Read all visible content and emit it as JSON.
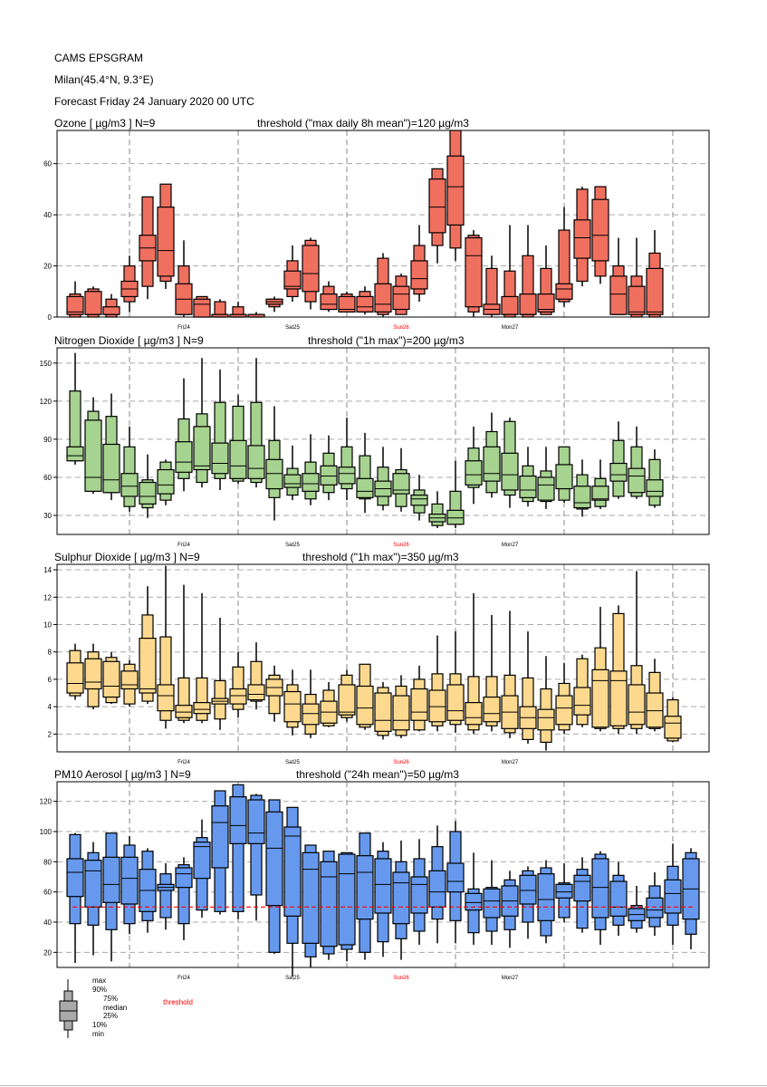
{
  "header": {
    "title": "CAMS EPSGRAM",
    "location": "Milan(45.4°N, 9.3°E)",
    "forecast": "Forecast Friday 24 January 2020 00 UTC"
  },
  "day_labels": [
    {
      "label": "Fri24",
      "color": "#000000"
    },
    {
      "label": "Sat25",
      "color": "#000000"
    },
    {
      "label": "Sun26",
      "color": "#ff0000"
    },
    {
      "label": "Mon27",
      "color": "#000000"
    }
  ],
  "legend": {
    "max": "max",
    "p90": "90%",
    "p75": "75%",
    "median": "median",
    "p25": "25%",
    "p10": "10%",
    "min": "min",
    "threshold": "threshold",
    "threshold_color": "#ff0000"
  },
  "chart_data": [
    {
      "type": "boxplot",
      "name": "ozone",
      "title": "Ozone [ µg/m3 ]   N=9",
      "threshold_label": "threshold (\"max daily 8h mean\")=120 µg/m3",
      "fill": "#f07060",
      "ylim": [
        0,
        73
      ],
      "yticks": [
        0,
        20,
        40,
        60
      ],
      "threshold_line": null,
      "boxes": [
        [
          0,
          0,
          1,
          2,
          8,
          9,
          14
        ],
        [
          0,
          0,
          1,
          1,
          10,
          11,
          12
        ],
        [
          0,
          0,
          1,
          1,
          4,
          7,
          9
        ],
        [
          2,
          6,
          8,
          11,
          14,
          20,
          24
        ],
        [
          7,
          12,
          22,
          27,
          32,
          47,
          40
        ],
        [
          11,
          14,
          16,
          26,
          43,
          52,
          42
        ],
        [
          0,
          1,
          1,
          7,
          13,
          20,
          30
        ],
        [
          0,
          0,
          0,
          5,
          7,
          8,
          8
        ],
        [
          0,
          0,
          0,
          0,
          1,
          6,
          7
        ],
        [
          0,
          0,
          0,
          0,
          1,
          4,
          6
        ],
        [
          0,
          0,
          0,
          0,
          1,
          1,
          2
        ],
        [
          2,
          4,
          5,
          6,
          7,
          7,
          8
        ],
        [
          6,
          8,
          11,
          12,
          18,
          22,
          28
        ],
        [
          3,
          6,
          10,
          17,
          28,
          30,
          31
        ],
        [
          2,
          3,
          3,
          5,
          9,
          12,
          14
        ],
        [
          2,
          2,
          2,
          3,
          8,
          9,
          10
        ],
        [
          1,
          2,
          2,
          4,
          8,
          10,
          12
        ],
        [
          0,
          1,
          2,
          5,
          13,
          23,
          25
        ],
        [
          1,
          1,
          3,
          9,
          12,
          16,
          17
        ],
        [
          6,
          9,
          11,
          15,
          22,
          28,
          36
        ],
        [
          21,
          28,
          33,
          43,
          54,
          58,
          57
        ],
        [
          22,
          27,
          36,
          51,
          63,
          73,
          73
        ],
        [
          0,
          2,
          4,
          24,
          31,
          32,
          34
        ],
        [
          0,
          1,
          1,
          3,
          5,
          19,
          24
        ],
        [
          0,
          0,
          1,
          1,
          8,
          18,
          36
        ],
        [
          0,
          0,
          1,
          1,
          9,
          24,
          36
        ],
        [
          1,
          1,
          2,
          3,
          9,
          19,
          28
        ],
        [
          4,
          6,
          7,
          11,
          13,
          34,
          43
        ],
        [
          12,
          14,
          23,
          31,
          38,
          50,
          51
        ],
        [
          13,
          16,
          22,
          32,
          46,
          51,
          51
        ],
        [
          1,
          1,
          1,
          9,
          16,
          20,
          31
        ],
        [
          0,
          0,
          1,
          2,
          12,
          16,
          31
        ],
        [
          0,
          0,
          1,
          2,
          19,
          25,
          34
        ]
      ]
    },
    {
      "type": "boxplot",
      "name": "nitrogen-dioxide",
      "title": "Nitrogen Dioxide [ µg/m3 ]   N=9",
      "threshold_label": "threshold (\"1h max\")=200 µg/m3",
      "fill": "#a6d38f",
      "ylim": [
        15,
        162
      ],
      "yticks": [
        30,
        60,
        90,
        120,
        150
      ],
      "threshold_line": null,
      "boxes": [
        [
          70,
          73,
          73,
          77,
          84,
          128,
          158
        ],
        [
          47,
          49,
          49,
          60,
          105,
          112,
          123
        ],
        [
          42,
          48,
          48,
          58,
          86,
          108,
          126
        ],
        [
          33,
          37,
          45,
          53,
          63,
          84,
          100
        ],
        [
          28,
          36,
          39,
          45,
          56,
          58,
          78
        ],
        [
          38,
          42,
          47,
          54,
          66,
          72,
          74
        ],
        [
          49,
          59,
          64,
          72,
          88,
          106,
          138
        ],
        [
          52,
          56,
          66,
          69,
          100,
          110,
          154
        ],
        [
          50,
          59,
          63,
          71,
          87,
          119,
          145
        ],
        [
          55,
          57,
          59,
          69,
          89,
          116,
          125
        ],
        [
          52,
          56,
          59,
          67,
          85,
          119,
          154
        ],
        [
          26,
          44,
          51,
          63,
          74,
          89,
          116
        ],
        [
          42,
          46,
          52,
          55,
          62,
          67,
          85
        ],
        [
          38,
          43,
          49,
          55,
          63,
          72,
          94
        ],
        [
          42,
          48,
          54,
          61,
          69,
          79,
          93
        ],
        [
          42,
          51,
          55,
          63,
          68,
          84,
          107
        ],
        [
          32,
          43,
          44,
          49,
          59,
          77,
          95
        ],
        [
          34,
          38,
          45,
          51,
          57,
          68,
          84
        ],
        [
          33,
          37,
          47,
          50,
          63,
          66,
          83
        ],
        [
          26,
          32,
          38,
          43,
          46,
          50,
          62
        ],
        [
          20,
          22,
          25,
          28,
          31,
          39,
          49
        ],
        [
          20,
          23,
          23,
          28,
          34,
          49,
          73
        ],
        [
          39,
          52,
          54,
          62,
          73,
          83,
          100
        ],
        [
          44,
          48,
          57,
          63,
          84,
          96,
          111
        ],
        [
          36,
          46,
          50,
          62,
          79,
          104,
          107
        ],
        [
          37,
          41,
          44,
          50,
          61,
          69,
          84
        ],
        [
          35,
          41,
          42,
          54,
          60,
          65,
          84
        ],
        [
          40,
          42,
          51,
          51,
          70,
          84,
          84
        ],
        [
          29,
          35,
          36,
          40,
          53,
          62,
          74
        ],
        [
          35,
          37,
          42,
          43,
          53,
          59,
          74
        ],
        [
          43,
          45,
          57,
          62,
          71,
          89,
          104
        ],
        [
          43,
          45,
          48,
          61,
          67,
          84,
          100
        ],
        [
          36,
          38,
          45,
          49,
          58,
          74,
          82
        ]
      ]
    },
    {
      "type": "boxplot",
      "name": "sulphur-dioxide",
      "title": "Sulphur Dioxide [ µg/m3 ]   N=9",
      "threshold_label": "threshold (\"1h max\")=350 µg/m3",
      "fill": "#fcd98e",
      "ylim": [
        0.7,
        14.4
      ],
      "yticks": [
        2,
        4,
        6,
        8,
        10,
        12,
        14
      ],
      "threshold_line": null,
      "boxes": [
        [
          4.5,
          4.8,
          5.0,
          5.7,
          7.2,
          8.1,
          8.6
        ],
        [
          3.8,
          4.0,
          5.3,
          5.8,
          7.5,
          8.0,
          8.6
        ],
        [
          4.2,
          4.3,
          4.7,
          5.5,
          7.3,
          7.6,
          8.0
        ],
        [
          4.0,
          4.2,
          5.3,
          5.6,
          6.6,
          7.1,
          7.4
        ],
        [
          4.2,
          4.4,
          5.0,
          5.3,
          9.0,
          10.7,
          12.8
        ],
        [
          2.4,
          3.0,
          3.7,
          4.8,
          5.6,
          9.1,
          14.3
        ],
        [
          2.8,
          3.0,
          3.2,
          3.6,
          4.1,
          6.1,
          12.9
        ],
        [
          2.8,
          3.0,
          3.5,
          3.8,
          4.3,
          6.1,
          12.3
        ],
        [
          2.3,
          3.1,
          4.2,
          4.4,
          4.6,
          5.9,
          10.5
        ],
        [
          3.2,
          3.8,
          4.2,
          4.8,
          5.3,
          6.9,
          8.0
        ],
        [
          3.8,
          4.4,
          4.5,
          4.9,
          5.6,
          7.3,
          8.7
        ],
        [
          2.9,
          3.5,
          4.8,
          5.4,
          6.0,
          6.3,
          7.0
        ],
        [
          1.9,
          2.5,
          2.9,
          4.2,
          5.1,
          5.6,
          6.7
        ],
        [
          1.7,
          2.0,
          2.7,
          3.5,
          4.2,
          4.9,
          6.7
        ],
        [
          2.5,
          2.6,
          2.8,
          3.6,
          4.4,
          5.2,
          5.8
        ],
        [
          2.9,
          3.2,
          3.4,
          3.6,
          5.6,
          6.3,
          6.7
        ],
        [
          2.3,
          2.5,
          2.7,
          3.9,
          5.5,
          7.1,
          7.1
        ],
        [
          1.6,
          1.9,
          2.2,
          3.0,
          5.0,
          5.4,
          5.8
        ],
        [
          1.7,
          1.9,
          2.3,
          3.0,
          4.8,
          5.5,
          6.3
        ],
        [
          2.2,
          2.3,
          3.0,
          3.6,
          5.3,
          6.0,
          7.0
        ],
        [
          2.2,
          2.6,
          2.9,
          4.0,
          5.2,
          6.4,
          9.2
        ],
        [
          2.1,
          2.7,
          3.0,
          3.7,
          5.6,
          6.4,
          9.5
        ],
        [
          2.0,
          2.3,
          2.7,
          3.2,
          4.3,
          6.2,
          12.3
        ],
        [
          2.2,
          2.6,
          2.9,
          3.5,
          4.7,
          6.2,
          10.7
        ],
        [
          1.7,
          2.1,
          2.4,
          3.6,
          4.8,
          6.3,
          11.0
        ],
        [
          1.3,
          1.6,
          2.4,
          3.2,
          4.0,
          6.1,
          9.5
        ],
        [
          0.8,
          1.4,
          2.3,
          3.2,
          3.8,
          5.3,
          7.7
        ],
        [
          2.0,
          2.3,
          2.7,
          3.9,
          4.8,
          5.7,
          7.2
        ],
        [
          2.5,
          2.7,
          3.4,
          4.1,
          5.4,
          7.5,
          7.8
        ],
        [
          2.2,
          2.4,
          2.5,
          5.9,
          6.7,
          8.3,
          11.3
        ],
        [
          2.0,
          2.4,
          2.6,
          5.9,
          6.6,
          10.8,
          11.4
        ],
        [
          2.0,
          2.4,
          2.7,
          3.6,
          5.6,
          7.0,
          13.9
        ],
        [
          2.2,
          2.4,
          2.5,
          3.7,
          5.0,
          6.5,
          7.5
        ],
        [
          1.4,
          1.5,
          1.7,
          2.8,
          3.3,
          4.5,
          4.7
        ]
      ]
    },
    {
      "type": "boxplot",
      "name": "pm10-aerosol",
      "title": "PM10 Aerosol [ µg/m3 ]   N=9",
      "threshold_label": "threshold (\"24h mean\")=50 µg/m3",
      "fill": "#6699ee",
      "ylim": [
        10,
        133
      ],
      "yticks": [
        20,
        40,
        60,
        80,
        100,
        120
      ],
      "threshold_line": 50,
      "boxes": [
        [
          13,
          39,
          57,
          73,
          82,
          98,
          99
        ],
        [
          18,
          38,
          50,
          74,
          81,
          86,
          93
        ],
        [
          14,
          35,
          53,
          65,
          83,
          99,
          99
        ],
        [
          32,
          39,
          52,
          69,
          83,
          91,
          97
        ],
        [
          33,
          41,
          47,
          61,
          75,
          87,
          89
        ],
        [
          35,
          43,
          61,
          63,
          65,
          72,
          79
        ],
        [
          28,
          39,
          63,
          72,
          76,
          78,
          83
        ],
        [
          43,
          48,
          69,
          90,
          93,
          96,
          108
        ],
        [
          45,
          47,
          76,
          106,
          117,
          127,
          127
        ],
        [
          42,
          47,
          92,
          104,
          123,
          131,
          130
        ],
        [
          41,
          58,
          92,
          99,
          121,
          124,
          125
        ],
        [
          19,
          20,
          51,
          89,
          113,
          121,
          119
        ],
        [
          4,
          26,
          44,
          97,
          103,
          116,
          115
        ],
        [
          10,
          17,
          26,
          75,
          86,
          91,
          90
        ],
        [
          15,
          19,
          24,
          70,
          80,
          87,
          87
        ],
        [
          14,
          22,
          25,
          72,
          85,
          86,
          83
        ],
        [
          15,
          20,
          42,
          73,
          84,
          99,
          99
        ],
        [
          17,
          27,
          46,
          65,
          82,
          87,
          93
        ],
        [
          15,
          29,
          39,
          66,
          73,
          80,
          94
        ],
        [
          25,
          34,
          46,
          65,
          70,
          82,
          95
        ],
        [
          26,
          42,
          50,
          60,
          74,
          90,
          104
        ],
        [
          26,
          41,
          60,
          67,
          79,
          100,
          107
        ],
        [
          25,
          33,
          48,
          53,
          59,
          62,
          86
        ],
        [
          25,
          34,
          43,
          54,
          62,
          63,
          81
        ],
        [
          23,
          35,
          44,
          54,
          64,
          68,
          74
        ],
        [
          29,
          40,
          52,
          61,
          71,
          74,
          77
        ],
        [
          26,
          31,
          41,
          55,
          72,
          76,
          81
        ],
        [
          40,
          43,
          56,
          60,
          65,
          66,
          79
        ],
        [
          33,
          36,
          54,
          67,
          71,
          75,
          83
        ],
        [
          25,
          35,
          43,
          63,
          82,
          85,
          87
        ],
        [
          31,
          38,
          44,
          50,
          67,
          71,
          80
        ],
        [
          33,
          36,
          41,
          45,
          49,
          51,
          64
        ],
        [
          31,
          37,
          43,
          48,
          56,
          64,
          73
        ],
        [
          25,
          38,
          46,
          59,
          68,
          77,
          92
        ],
        [
          22,
          32,
          42,
          62,
          82,
          86,
          89
        ]
      ]
    }
  ]
}
